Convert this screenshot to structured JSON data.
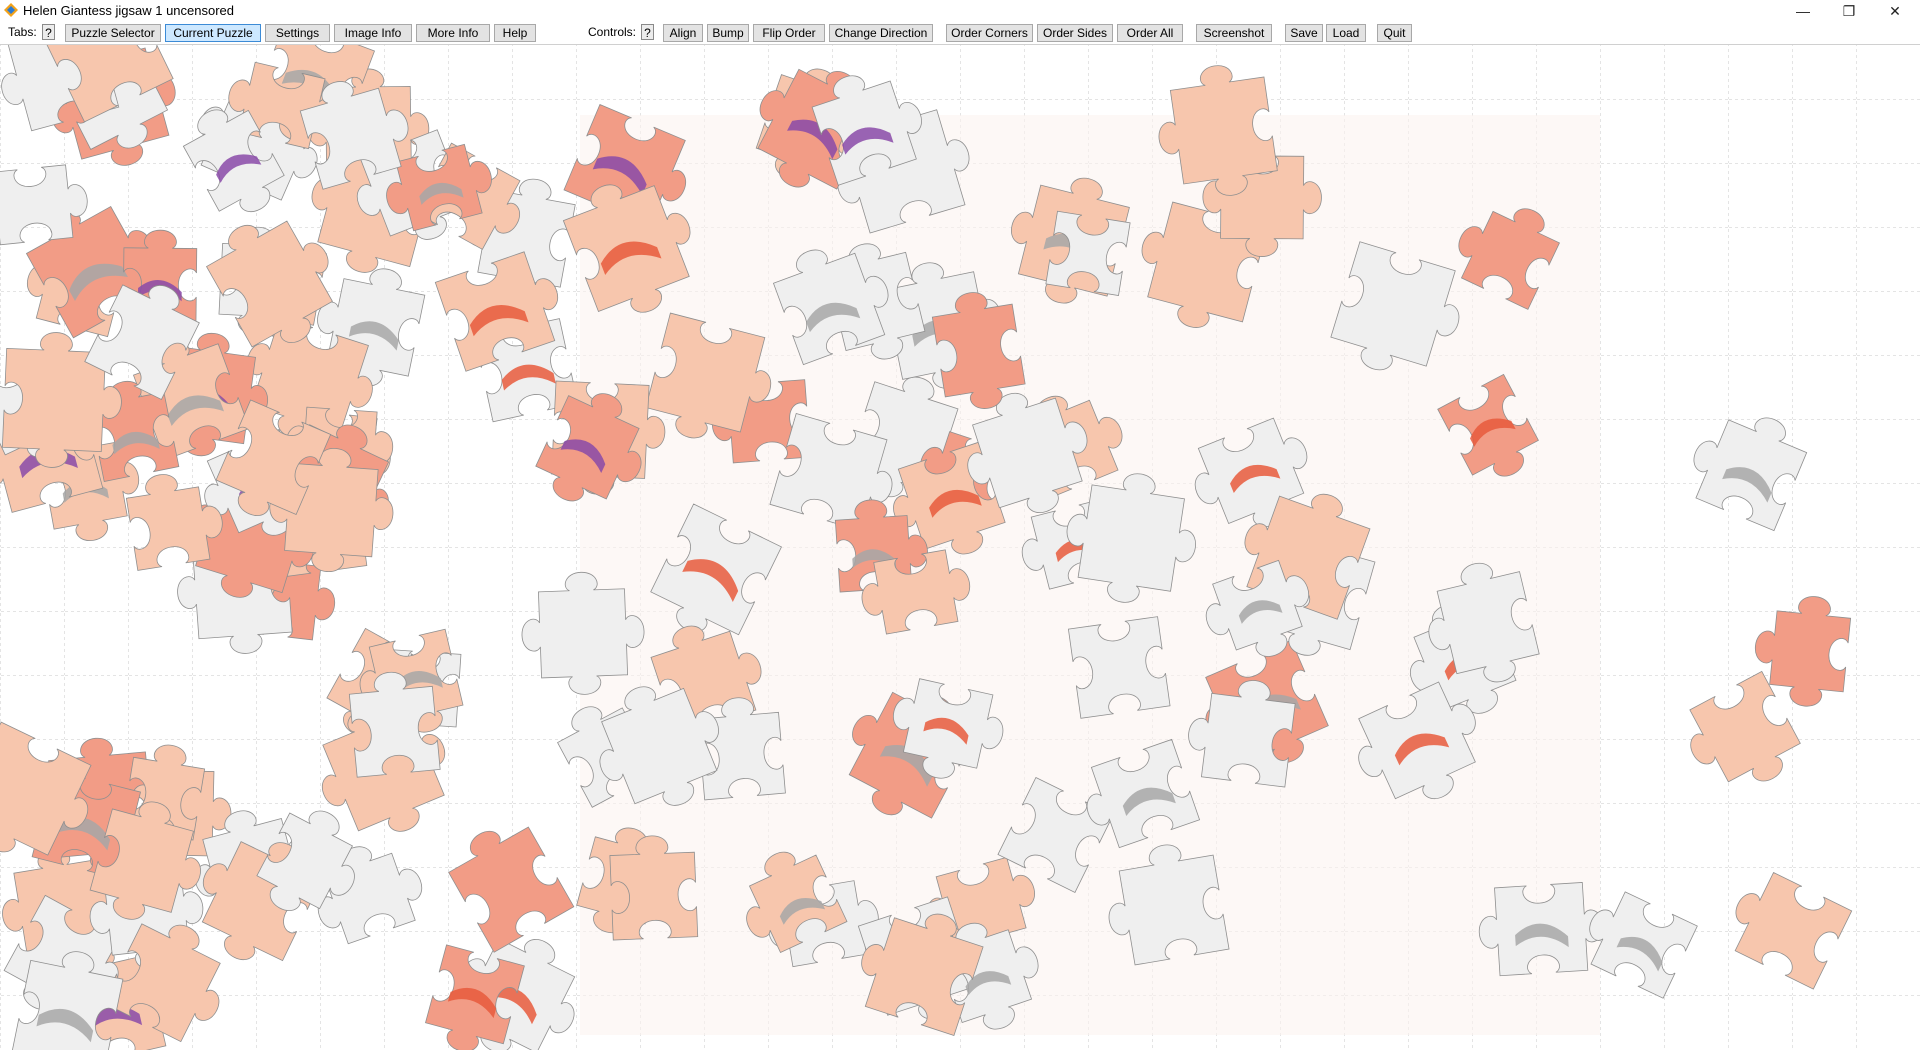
{
  "window": {
    "title": "Helen Giantess jigsaw 1 uncensored",
    "controls": {
      "minimize_icon": "minimize-icon",
      "restore_icon": "restore-icon",
      "close_icon": "close-icon"
    }
  },
  "toolbar": {
    "tabs_label": "Tabs:",
    "tabs_help": "?",
    "tabs": [
      {
        "label": "Puzzle Selector",
        "active": false
      },
      {
        "label": "Current Puzzle",
        "active": true
      },
      {
        "label": "Settings",
        "active": false
      },
      {
        "label": "Image Info",
        "active": false
      },
      {
        "label": "More Info",
        "active": false
      },
      {
        "label": "Help",
        "active": false
      }
    ],
    "controls_label": "Controls:",
    "controls_help": "?",
    "controls": [
      {
        "label": "Align"
      },
      {
        "label": "Bump"
      },
      {
        "label": "Flip Order"
      },
      {
        "label": "Change Direction"
      },
      {
        "label": "Order Corners"
      },
      {
        "label": "Order Sides"
      },
      {
        "label": "Order All"
      },
      {
        "label": "Screenshot"
      },
      {
        "label": "Save"
      },
      {
        "label": "Load"
      },
      {
        "label": "Quit"
      }
    ]
  },
  "colors": {
    "accent": "#3c8bd6",
    "skin": "#f7c6ad",
    "skin_dark": "#f29c86",
    "hair_red": "#e85b3c",
    "hair_purple": "#8a4aa8",
    "paper": "#efefef",
    "shadow": "#a7a7a7",
    "grid": "#c9c9c9"
  },
  "board": {
    "grid_spacing_px": 64
  }
}
